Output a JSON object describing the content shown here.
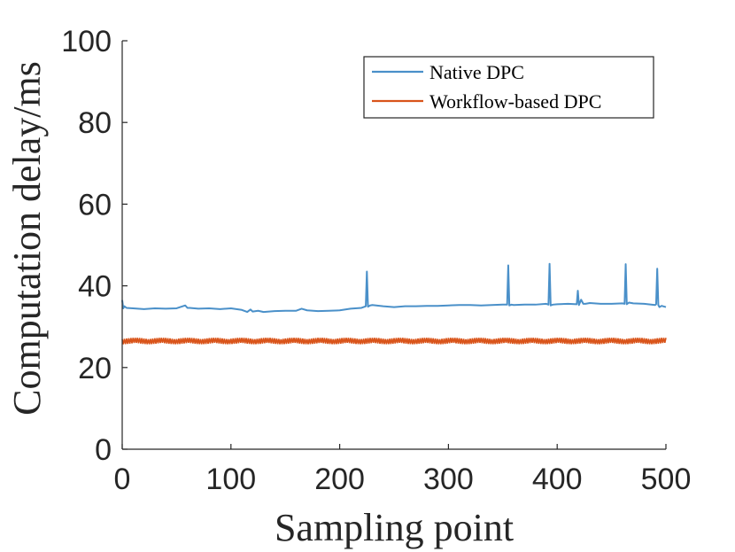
{
  "chart_data": {
    "type": "line",
    "title": "",
    "xlabel": "Sampling point",
    "ylabel": "Computation delay/ms",
    "xlim": [
      0,
      500
    ],
    "ylim": [
      0,
      100
    ],
    "xticks": [
      0,
      100,
      200,
      300,
      400,
      500
    ],
    "yticks": [
      0,
      20,
      40,
      60,
      80,
      100
    ],
    "grid": false,
    "legend_position": "top-right",
    "series": [
      {
        "name": "Native DPC",
        "color": "#4a90c9",
        "x": [
          0,
          1,
          2,
          4,
          10,
          20,
          30,
          40,
          50,
          58,
          60,
          62,
          70,
          80,
          90,
          100,
          110,
          115,
          118,
          120,
          125,
          130,
          140,
          150,
          160,
          165,
          170,
          180,
          190,
          200,
          210,
          220,
          224,
          225,
          226,
          228,
          230,
          240,
          250,
          260,
          270,
          280,
          290,
          300,
          310,
          320,
          330,
          340,
          350,
          354,
          355,
          356,
          358,
          360,
          370,
          380,
          390,
          392,
          393,
          394,
          396,
          400,
          410,
          418,
          419,
          420,
          422,
          424,
          426,
          430,
          440,
          450,
          460,
          462,
          463,
          464,
          466,
          470,
          480,
          490,
          491,
          492,
          493,
          494,
          496,
          500
        ],
        "values": [
          36.5,
          34.5,
          35.0,
          34.6,
          34.5,
          34.3,
          34.5,
          34.4,
          34.5,
          35.2,
          34.6,
          34.6,
          34.4,
          34.5,
          34.3,
          34.5,
          34.1,
          33.6,
          34.2,
          33.7,
          33.9,
          33.6,
          33.8,
          33.9,
          33.9,
          34.4,
          34.0,
          33.8,
          33.9,
          34.0,
          34.4,
          34.6,
          35.0,
          43.5,
          34.9,
          35.2,
          35.3,
          35.0,
          34.8,
          35.0,
          35.0,
          35.1,
          35.1,
          35.2,
          35.3,
          35.3,
          35.2,
          35.3,
          35.4,
          35.4,
          45.0,
          35.2,
          35.4,
          35.3,
          35.4,
          35.4,
          35.6,
          35.4,
          45.4,
          35.2,
          35.4,
          35.5,
          35.6,
          35.5,
          38.8,
          35.3,
          36.6,
          35.6,
          35.6,
          35.8,
          35.6,
          35.6,
          35.7,
          35.6,
          45.3,
          35.5,
          35.9,
          35.7,
          35.6,
          35.3,
          35.5,
          44.2,
          35.3,
          34.8,
          35.1,
          34.8
        ]
      },
      {
        "name": "Workflow-based DPC",
        "color": "#d9541a",
        "x": [
          0,
          500
        ],
        "values": [
          26.5,
          26.5
        ],
        "noise_band": 1.2
      }
    ]
  }
}
